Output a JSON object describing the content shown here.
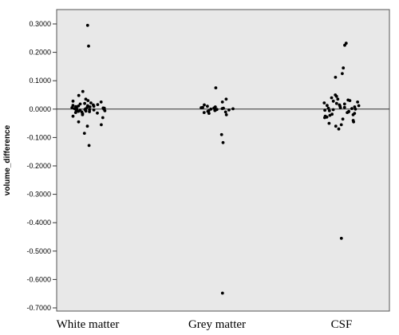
{
  "chart_data": {
    "type": "scatter",
    "ylabel": "volume_difference",
    "xlabel": "",
    "ylim": [
      -0.7,
      0.3
    ],
    "yticks": [
      0.3,
      0.2,
      0.1,
      0.0,
      -0.1,
      -0.2,
      -0.3,
      -0.4,
      -0.5,
      -0.6,
      -0.7
    ],
    "ytick_labels": [
      "0.3000",
      "0.2000",
      "0.1000",
      "0.0000",
      "-0.1000",
      "-0.2000",
      "-0.3000",
      "-0.4000",
      "-0.5000",
      "-0.6000",
      "-0.7000"
    ],
    "reference_line_y": 0.0,
    "grid": false,
    "background_color": "#e8e8e8",
    "point_color": "#000000",
    "categories": [
      "White matter",
      "Grey matter",
      "CSF"
    ],
    "series": [
      {
        "category": "White matter",
        "values": [
          0.295,
          0.222,
          0.062,
          0.048,
          0.035,
          0.03,
          0.028,
          0.025,
          0.022,
          0.02,
          0.018,
          0.016,
          0.015,
          0.013,
          0.012,
          0.011,
          0.01,
          0.009,
          0.008,
          0.007,
          0.006,
          0.005,
          0.004,
          0.003,
          0.002,
          0.001,
          0.0,
          0.0,
          -0.001,
          -0.002,
          -0.003,
          -0.004,
          -0.005,
          -0.006,
          -0.007,
          -0.008,
          -0.009,
          -0.01,
          -0.012,
          -0.014,
          -0.016,
          -0.02,
          -0.025,
          -0.03,
          -0.045,
          -0.055,
          -0.06,
          -0.085,
          -0.128
        ]
      },
      {
        "category": "Grey matter",
        "values": [
          0.075,
          0.035,
          0.025,
          0.015,
          0.01,
          0.008,
          0.006,
          0.005,
          0.004,
          0.003,
          0.002,
          0.001,
          0.0,
          0.0,
          -0.001,
          -0.002,
          -0.003,
          -0.004,
          -0.005,
          -0.006,
          -0.008,
          -0.01,
          -0.012,
          -0.015,
          -0.02,
          -0.09,
          -0.118,
          -0.648
        ]
      },
      {
        "category": "CSF",
        "values": [
          0.232,
          0.225,
          0.145,
          0.125,
          0.112,
          0.05,
          0.045,
          0.04,
          0.035,
          0.032,
          0.03,
          0.028,
          0.025,
          0.022,
          0.02,
          0.018,
          0.015,
          0.013,
          0.012,
          0.01,
          0.008,
          0.006,
          0.005,
          0.003,
          0.002,
          0.0,
          -0.002,
          -0.004,
          -0.006,
          -0.008,
          -0.01,
          -0.012,
          -0.015,
          -0.018,
          -0.02,
          -0.022,
          -0.025,
          -0.028,
          -0.03,
          -0.035,
          -0.04,
          -0.045,
          -0.05,
          -0.055,
          -0.06,
          -0.07,
          -0.455
        ]
      }
    ]
  }
}
